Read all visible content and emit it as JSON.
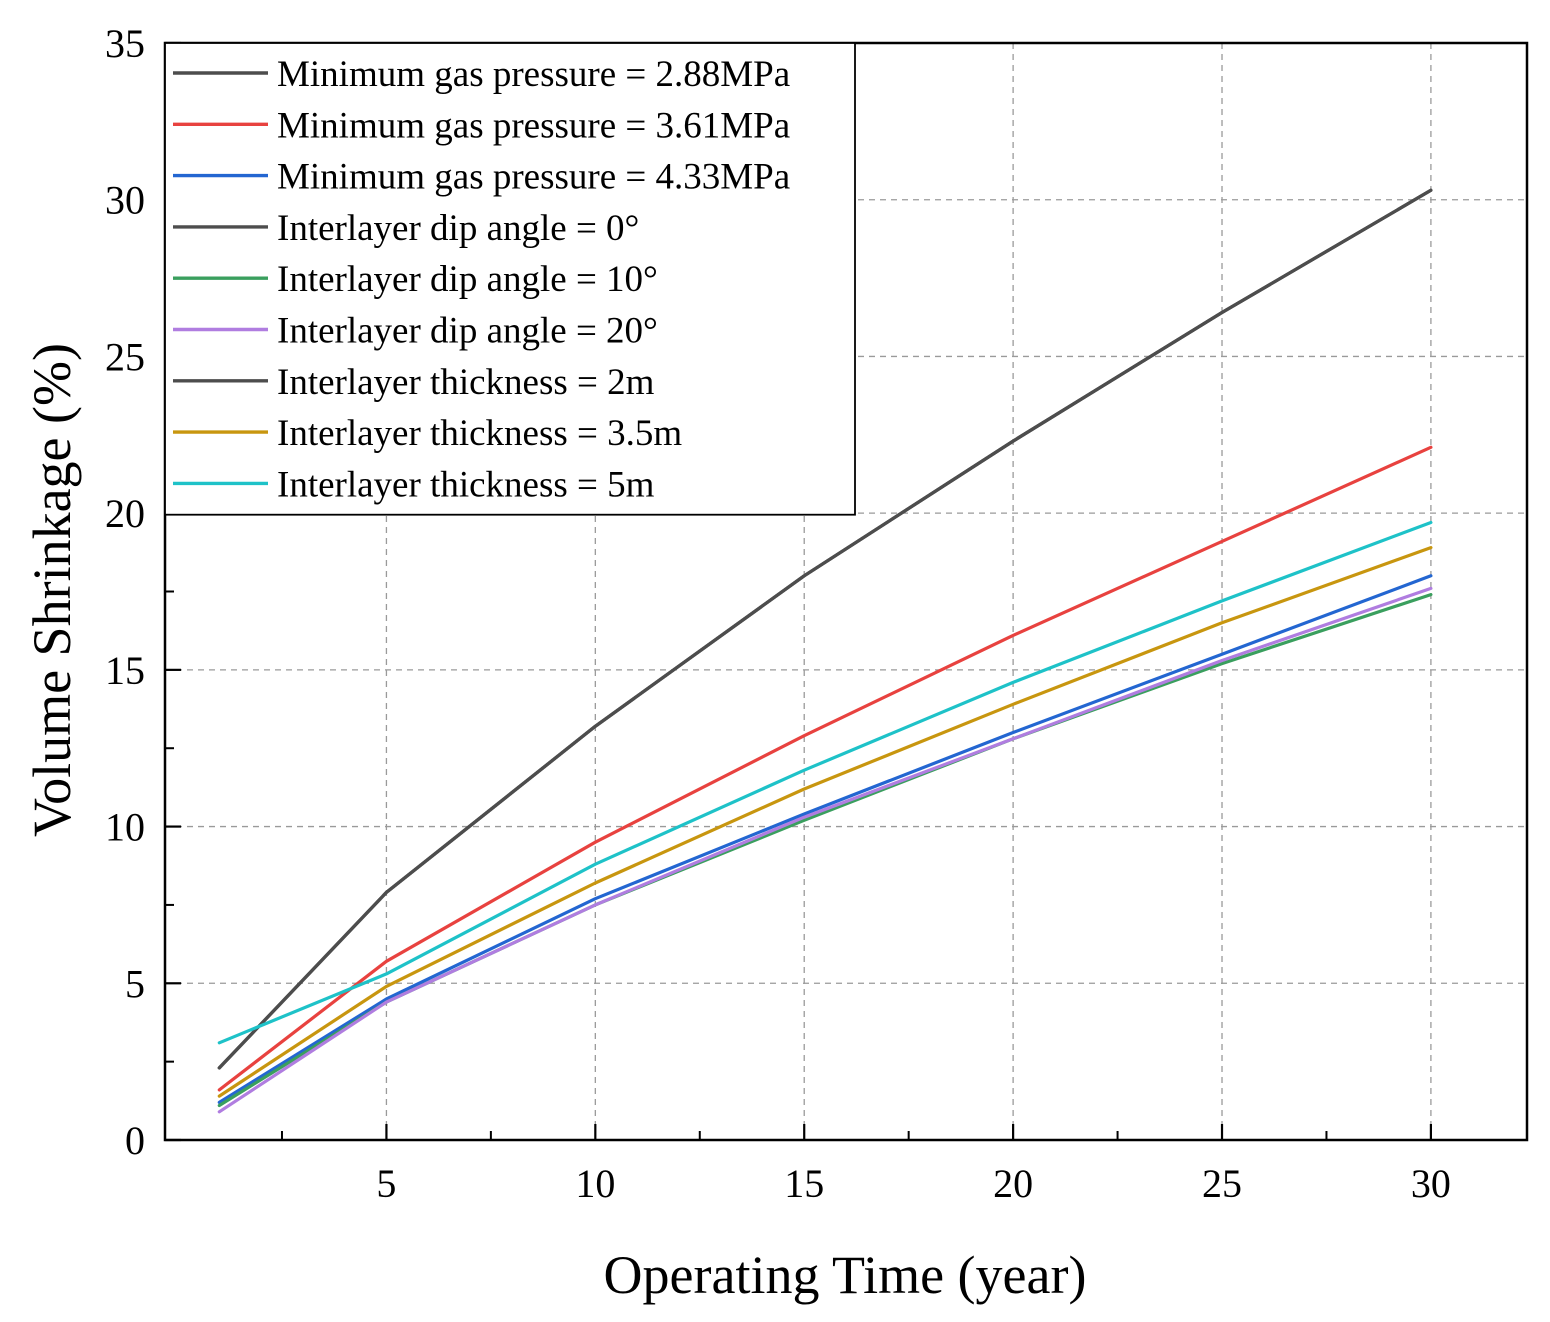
{
  "chart_data": {
    "type": "line",
    "xlabel": "Operating Time (year)",
    "ylabel": "Volume Shrinkage (%)",
    "xlim": [
      -0.3,
      32.3
    ],
    "ylim": [
      0,
      35
    ],
    "x_ticks": [
      5,
      10,
      15,
      20,
      25,
      30
    ],
    "y_ticks": [
      0,
      5,
      10,
      15,
      20,
      25,
      30,
      35
    ],
    "x_minor_ticks": [
      2.5,
      7.5,
      12.5,
      17.5,
      22.5,
      27.5
    ],
    "y_minor_ticks": [
      2.5,
      7.5,
      12.5,
      17.5,
      22.5,
      27.5,
      32.5
    ],
    "grid": "dashed",
    "legend_position": "top-left",
    "x": [
      1,
      5,
      10,
      15,
      20,
      25,
      30
    ],
    "series": [
      {
        "name": "Minimum gas pressure = 2.88MPa",
        "color": "#4d4d4d",
        "values": [
          2.3,
          7.9,
          13.2,
          18.0,
          22.3,
          26.4,
          30.3
        ]
      },
      {
        "name": "Minimum gas pressure = 3.61MPa",
        "color": "#e8423f",
        "values": [
          1.6,
          5.7,
          9.5,
          12.9,
          16.1,
          19.1,
          22.1
        ]
      },
      {
        "name": "Minimum gas pressure = 4.33MPa",
        "color": "#2366d1",
        "values": [
          1.2,
          4.5,
          7.7,
          10.4,
          13.0,
          15.5,
          18.0
        ]
      },
      {
        "name": "Interlayer dip angle = 0°",
        "color": "#4d4d4d",
        "values": [
          2.3,
          7.9,
          13.2,
          18.0,
          22.3,
          26.4,
          30.3
        ]
      },
      {
        "name": "Interlayer dip angle = 10°",
        "color": "#3a9f5e",
        "values": [
          1.1,
          4.4,
          7.5,
          10.2,
          12.8,
          15.2,
          17.4
        ]
      },
      {
        "name": "Interlayer dip angle = 20°",
        "color": "#b07de0",
        "values": [
          0.9,
          4.4,
          7.5,
          10.3,
          12.8,
          15.3,
          17.6
        ]
      },
      {
        "name": "Interlayer thickness = 2m",
        "color": "#4d4d4d",
        "values": [
          2.3,
          7.9,
          13.2,
          18.0,
          22.3,
          26.4,
          30.3
        ]
      },
      {
        "name": "Interlayer thickness = 3.5m",
        "color": "#c8960f",
        "values": [
          1.4,
          4.9,
          8.2,
          11.2,
          13.9,
          16.5,
          18.9
        ]
      },
      {
        "name": "Interlayer thickness = 5m",
        "color": "#1ec2c8",
        "values": [
          3.1,
          5.3,
          8.8,
          11.8,
          14.6,
          17.2,
          19.7
        ]
      }
    ]
  }
}
